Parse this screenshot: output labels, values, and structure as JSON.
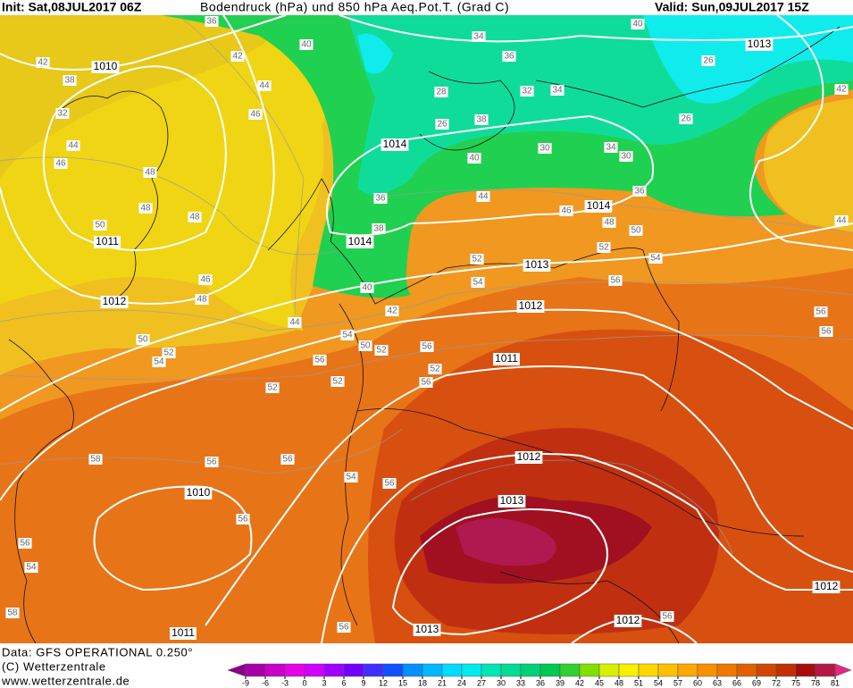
{
  "header": {
    "init": "Init: Sat,08JUL2017 06Z",
    "title": "Bodendruck (hPa) und 850 hPa Aeq.Pot.T. (Grad C)",
    "valid": "Valid: Sun,09JUL2017 15Z"
  },
  "footer": {
    "data": "Data: GFS OPERATIONAL 0.250°",
    "copyright": "(C) Wetterzentrale",
    "url": "www.wetterzentrale.de"
  },
  "colorbar": {
    "ticks": [
      -9,
      -6,
      -3,
      0,
      3,
      6,
      9,
      12,
      15,
      18,
      21,
      24,
      27,
      30,
      33,
      36,
      39,
      42,
      45,
      48,
      51,
      54,
      57,
      60,
      63,
      66,
      69,
      72,
      75,
      78,
      81
    ],
    "colors": [
      "#8c008c",
      "#a800a8",
      "#c800c8",
      "#e600e6",
      "#d200ff",
      "#a000ff",
      "#7000ff",
      "#4030ff",
      "#1050ff",
      "#0090ff",
      "#00b8ff",
      "#00dcff",
      "#00ecec",
      "#00e6b4",
      "#00dc96",
      "#00d278",
      "#00c850",
      "#30d030",
      "#80e000",
      "#d8f000",
      "#f8f000",
      "#ffd800",
      "#ffc000",
      "#ffa800",
      "#f89000",
      "#f07800",
      "#e06000",
      "#d04800",
      "#c03000",
      "#a80c0c",
      "#b41848",
      "#e6287d"
    ]
  },
  "isobar_labels": [
    "1010",
    "1011",
    "1012",
    "1014",
    "1014",
    "1013",
    "1012",
    "1011",
    "1012",
    "1013",
    "1010",
    "1011",
    "1013",
    "1012",
    "1012",
    "1014",
    "1013"
  ],
  "theta_labels": [
    "42",
    "38",
    "32",
    "44",
    "46",
    "48",
    "50",
    "48",
    "42",
    "44",
    "46",
    "40",
    "36",
    "34",
    "36",
    "28",
    "32",
    "34",
    "26",
    "38",
    "40",
    "30",
    "34",
    "30",
    "26",
    "26",
    "44",
    "46",
    "48",
    "50",
    "52",
    "54",
    "56",
    "52",
    "54",
    "44",
    "42",
    "56",
    "56",
    "52",
    "52",
    "56",
    "58",
    "56",
    "56",
    "54",
    "56",
    "56",
    "56",
    "54",
    "58",
    "56",
    "56",
    "48",
    "46",
    "48",
    "50",
    "52",
    "54",
    "36",
    "38",
    "40",
    "50",
    "52",
    "54",
    "56",
    "52",
    "56",
    "44",
    "42",
    "36",
    "40"
  ]
}
